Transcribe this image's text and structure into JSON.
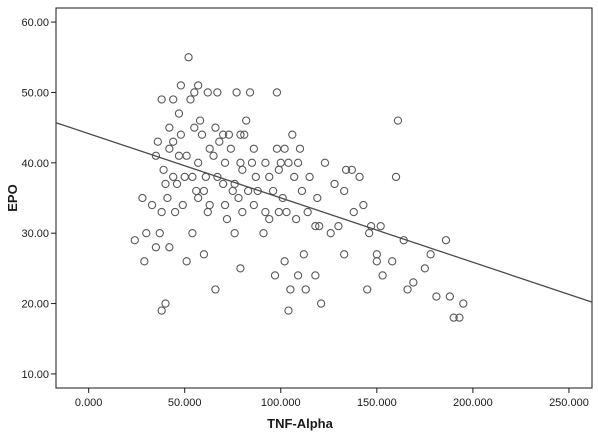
{
  "chart_data": {
    "type": "scatter",
    "title": "",
    "xlabel": "TNF-Alpha",
    "ylabel": "EPO",
    "xlim": [
      -17,
      262
    ],
    "ylim": [
      8,
      62
    ],
    "grid": false,
    "x_ticks": [
      0,
      50,
      100,
      150,
      200,
      250
    ],
    "x_tick_labels": [
      "0.000",
      "50.000",
      "100.000",
      "150.000",
      "200.000",
      "250.000"
    ],
    "y_ticks": [
      10,
      20,
      30,
      40,
      50,
      60
    ],
    "y_tick_labels": [
      "10.00",
      "20.00",
      "30.00",
      "40.00",
      "50.00",
      "60.00"
    ],
    "marker_color": "#5a5a5a",
    "line_color": "#4a4a4a",
    "fit_line": {
      "x": [
        -17,
        262
      ],
      "y": [
        45.7,
        20.2
      ]
    },
    "points": [
      [
        52,
        55
      ],
      [
        48,
        51
      ],
      [
        57,
        51
      ],
      [
        55,
        50
      ],
      [
        62,
        50
      ],
      [
        67,
        50
      ],
      [
        77,
        50
      ],
      [
        84,
        50
      ],
      [
        98,
        50
      ],
      [
        38,
        49
      ],
      [
        44,
        49
      ],
      [
        53,
        49
      ],
      [
        47,
        47
      ],
      [
        58,
        46
      ],
      [
        82,
        46
      ],
      [
        161,
        46
      ],
      [
        42,
        45
      ],
      [
        55,
        45
      ],
      [
        66,
        45
      ],
      [
        48,
        44
      ],
      [
        36,
        43
      ],
      [
        44,
        43
      ],
      [
        59,
        44
      ],
      [
        70,
        44
      ],
      [
        73,
        44
      ],
      [
        79,
        44
      ],
      [
        81,
        44
      ],
      [
        106,
        44
      ],
      [
        42,
        42
      ],
      [
        51,
        41
      ],
      [
        63,
        42
      ],
      [
        68,
        43
      ],
      [
        74,
        42
      ],
      [
        86,
        42
      ],
      [
        98,
        42
      ],
      [
        102,
        42
      ],
      [
        110,
        42
      ],
      [
        35,
        41
      ],
      [
        47,
        41
      ],
      [
        57,
        40
      ],
      [
        65,
        41
      ],
      [
        71,
        40
      ],
      [
        79,
        40
      ],
      [
        85,
        40
      ],
      [
        92,
        40
      ],
      [
        100,
        40
      ],
      [
        104,
        40
      ],
      [
        109,
        40
      ],
      [
        123,
        40
      ],
      [
        134,
        39
      ],
      [
        39,
        39
      ],
      [
        44,
        38
      ],
      [
        50,
        38
      ],
      [
        54,
        38
      ],
      [
        61,
        38
      ],
      [
        67,
        38
      ],
      [
        76,
        37
      ],
      [
        80,
        39
      ],
      [
        87,
        38
      ],
      [
        94,
        38
      ],
      [
        99,
        39
      ],
      [
        107,
        38
      ],
      [
        115,
        38
      ],
      [
        128,
        37
      ],
      [
        141,
        38
      ],
      [
        160,
        38
      ],
      [
        40,
        37
      ],
      [
        46,
        37
      ],
      [
        56,
        36
      ],
      [
        60,
        36
      ],
      [
        70,
        37
      ],
      [
        75,
        36
      ],
      [
        83,
        36
      ],
      [
        88,
        36
      ],
      [
        96,
        36
      ],
      [
        101,
        35
      ],
      [
        111,
        36
      ],
      [
        119,
        35
      ],
      [
        133,
        36
      ],
      [
        28,
        35
      ],
      [
        33,
        34
      ],
      [
        41,
        35
      ],
      [
        49,
        34
      ],
      [
        57,
        35
      ],
      [
        63,
        34
      ],
      [
        71,
        34
      ],
      [
        78,
        35
      ],
      [
        86,
        34
      ],
      [
        92,
        33
      ],
      [
        99,
        33
      ],
      [
        103,
        33
      ],
      [
        114,
        33
      ],
      [
        138,
        33
      ],
      [
        143,
        34
      ],
      [
        38,
        33
      ],
      [
        45,
        33
      ],
      [
        62,
        33
      ],
      [
        72,
        32
      ],
      [
        80,
        33
      ],
      [
        94,
        32
      ],
      [
        108,
        32
      ],
      [
        120,
        31
      ],
      [
        130,
        31
      ],
      [
        147,
        31
      ],
      [
        152,
        31
      ],
      [
        30,
        30
      ],
      [
        37,
        30
      ],
      [
        54,
        30
      ],
      [
        76,
        30
      ],
      [
        91,
        30
      ],
      [
        118,
        31
      ],
      [
        126,
        30
      ],
      [
        146,
        30
      ],
      [
        164,
        29
      ],
      [
        24,
        29
      ],
      [
        35,
        28
      ],
      [
        42,
        28
      ],
      [
        60,
        27
      ],
      [
        112,
        27
      ],
      [
        133,
        27
      ],
      [
        150,
        27
      ],
      [
        178,
        27
      ],
      [
        186,
        29
      ],
      [
        29,
        26
      ],
      [
        51,
        26
      ],
      [
        79,
        25
      ],
      [
        102,
        26
      ],
      [
        150,
        26
      ],
      [
        158,
        26
      ],
      [
        175,
        25
      ],
      [
        97,
        24
      ],
      [
        109,
        24
      ],
      [
        118,
        24
      ],
      [
        153,
        24
      ],
      [
        169,
        23
      ],
      [
        66,
        22
      ],
      [
        105,
        22
      ],
      [
        113,
        22
      ],
      [
        145,
        22
      ],
      [
        181,
        21
      ],
      [
        40,
        20
      ],
      [
        121,
        20
      ],
      [
        188,
        21
      ],
      [
        195,
        20
      ],
      [
        38,
        19
      ],
      [
        104,
        19
      ],
      [
        190,
        18
      ],
      [
        193,
        18
      ],
      [
        166,
        22
      ],
      [
        137,
        39
      ]
    ]
  }
}
